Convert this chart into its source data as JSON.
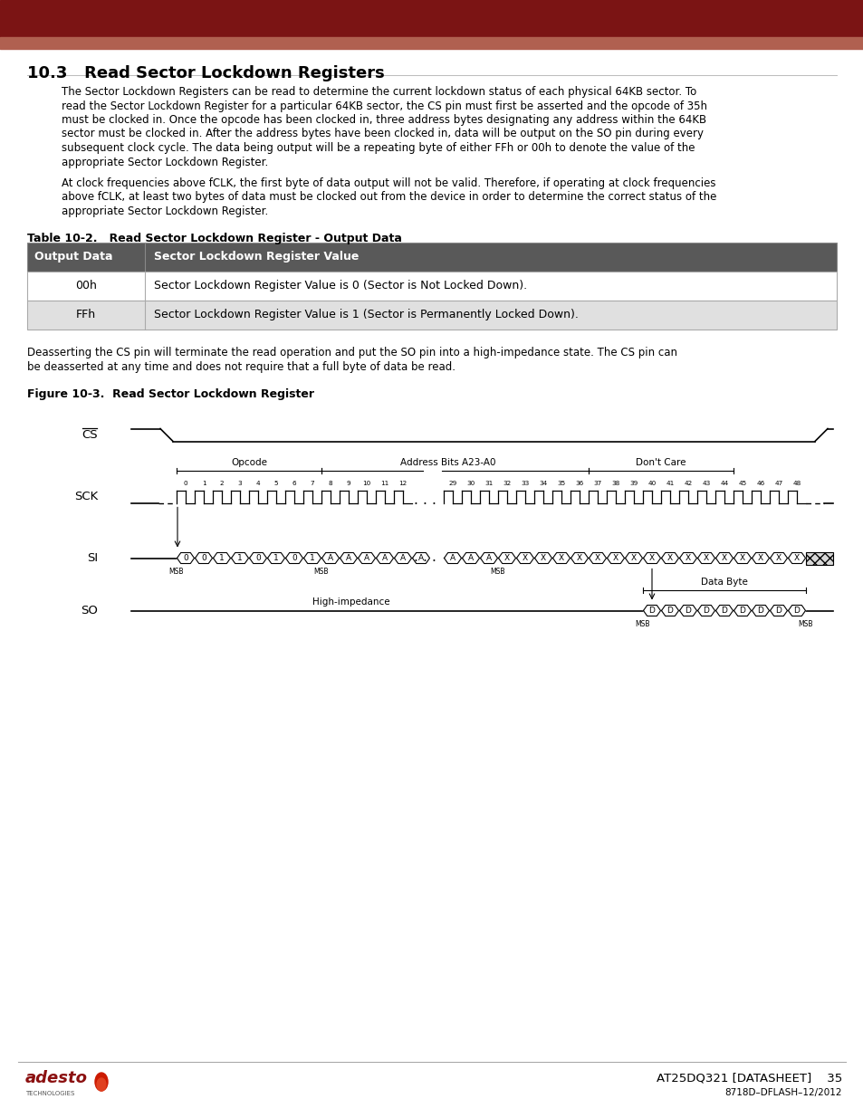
{
  "header_color_dark": "#7B1414",
  "header_color_light": "#B06050",
  "body_bg": "#FFFFFF",
  "text_color": "#000000",
  "section_title": "10.3   Read Sector Lockdown Registers",
  "para1_lines": [
    "The Sector Lockdown Registers can be read to determine the current lockdown status of each physical 64KB sector. To",
    "read the Sector Lockdown Register for a particular 64KB sector, the CS pin must first be asserted and the opcode of 35h",
    "must be clocked in. Once the opcode has been clocked in, three address bytes designating any address within the 64KB",
    "sector must be clocked in. After the address bytes have been clocked in, data will be output on the SO pin during every",
    "subsequent clock cycle. The data being output will be a repeating byte of either FFh or 00h to denote the value of the",
    "appropriate Sector Lockdown Register."
  ],
  "para2_lines": [
    "At clock frequencies above fCLK, the first byte of data output will not be valid. Therefore, if operating at clock frequencies",
    "above fCLK, at least two bytes of data must be clocked out from the device in order to determine the correct status of the",
    "appropriate Sector Lockdown Register."
  ],
  "table_caption": "Table 10-2.   Read Sector Lockdown Register - Output Data",
  "table_header_col1": "Output Data",
  "table_header_col2": "Sector Lockdown Register Value",
  "table_header_bg": "#595959",
  "table_row1": [
    "00h",
    "Sector Lockdown Register Value is 0 (Sector is Not Locked Down)."
  ],
  "table_row2": [
    "FFh",
    "Sector Lockdown Register Value is 1 (Sector is Permanently Locked Down)."
  ],
  "table_row1_bg": "#FFFFFF",
  "table_row2_bg": "#E0E0E0",
  "para3_lines": [
    "Deasserting the CS pin will terminate the read operation and put the SO pin into a high-impedance state. The CS pin can",
    "be deasserted at any time and does not require that a full byte of data be read."
  ],
  "figure_caption": "Figure 10-3.  Read Sector Lockdown Register",
  "opcode_bits": [
    "0",
    "0",
    "1",
    "1",
    "0",
    "1",
    "0",
    "1"
  ],
  "addr_bits_left": [
    "A",
    "A",
    "A",
    "A",
    "A",
    "A"
  ],
  "addr_bits_right": [
    "A",
    "A",
    "A"
  ],
  "dc_bits": [
    "X",
    "X",
    "X",
    "X",
    "X",
    "X",
    "X",
    "X",
    "X",
    "X",
    "X",
    "X",
    "X",
    "X",
    "X",
    "X",
    "X"
  ],
  "so_bits": [
    "D",
    "D",
    "D",
    "D",
    "D",
    "D",
    "D",
    "D",
    "D"
  ],
  "footer_product": "AT25DQ321 [DATASHEET]",
  "footer_page": "35",
  "footer_doc": "8718D–DFLASH–12/2012"
}
